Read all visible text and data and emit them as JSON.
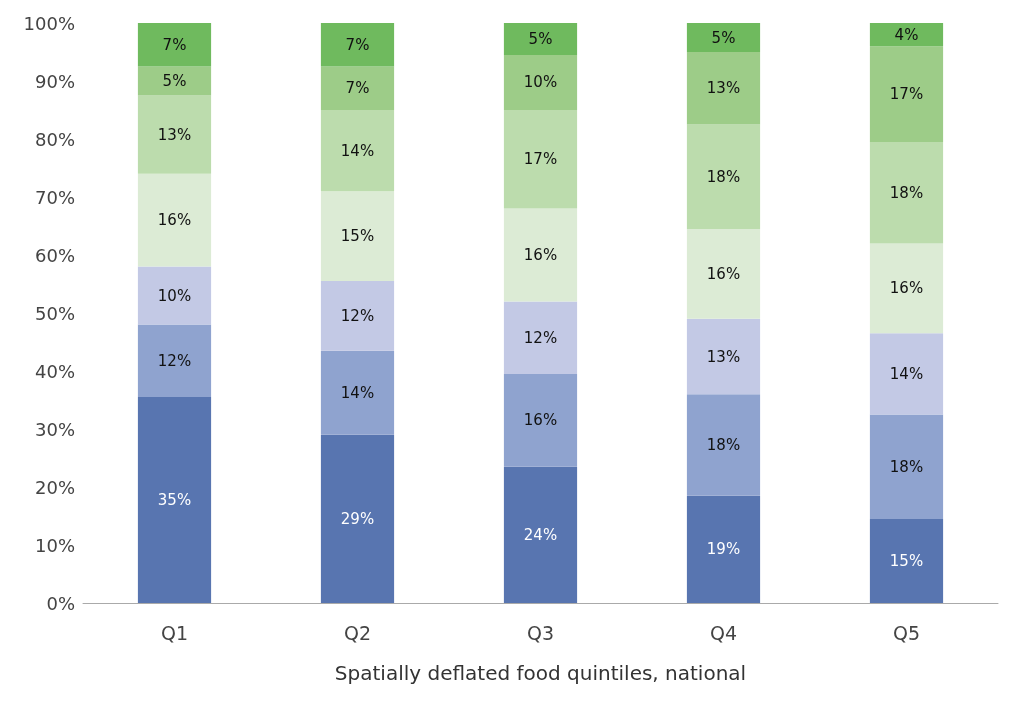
{
  "chart_data": {
    "type": "bar",
    "stacked": true,
    "xlabel": "Spatially deflated food quintiles, national",
    "categories": [
      "Q1",
      "Q2",
      "Q3",
      "Q4",
      "Q5"
    ],
    "series": [
      {
        "color": "#5875b0",
        "values": [
          35.5,
          29,
          23.5,
          18.5,
          14.5
        ],
        "value_labels": [
          "35%",
          "29%",
          "24%",
          "19%",
          "15%"
        ]
      },
      {
        "color": "#8fa3cf",
        "values": [
          12.5,
          14.5,
          16,
          17.5,
          18
        ],
        "value_labels": [
          "12%",
          "14%",
          "16%",
          "18%",
          "18%"
        ]
      },
      {
        "color": "#c3c9e5",
        "values": [
          10,
          12,
          12.5,
          13,
          14
        ],
        "value_labels": [
          "10%",
          "12%",
          "12%",
          "13%",
          "14%"
        ]
      },
      {
        "color": "#dcebd5",
        "values": [
          16,
          15.5,
          16,
          15.5,
          15.5
        ],
        "value_labels": [
          "16%",
          "15%",
          "16%",
          "16%",
          "16%"
        ]
      },
      {
        "color": "#bcdcad",
        "values": [
          13.5,
          14,
          17,
          18,
          17.5
        ],
        "value_labels": [
          "13%",
          "14%",
          "17%",
          "18%",
          "18%"
        ]
      },
      {
        "color": "#9dcc88",
        "values": [
          5,
          7.5,
          9.5,
          12.5,
          16.5
        ],
        "value_labels": [
          "5%",
          "7%",
          "10%",
          "13%",
          "17%"
        ]
      },
      {
        "color": "#6fba5e",
        "values": [
          7.5,
          7.5,
          5.5,
          5,
          4
        ],
        "value_labels": [
          "7%",
          "7%",
          "5%",
          "5%",
          "4%"
        ]
      }
    ],
    "ylim": [
      0,
      100
    ],
    "yticks": [
      {
        "value": 0,
        "label": "0%"
      },
      {
        "value": 10,
        "label": "10%"
      },
      {
        "value": 20,
        "label": "20%"
      },
      {
        "value": 30,
        "label": "30%"
      },
      {
        "value": 40,
        "label": "40%"
      },
      {
        "value": 50,
        "label": "50%"
      },
      {
        "value": 60,
        "label": "60%"
      },
      {
        "value": 70,
        "label": "70%"
      },
      {
        "value": 80,
        "label": "80%"
      },
      {
        "value": 90,
        "label": "90%"
      },
      {
        "value": 100,
        "label": "100%"
      }
    ],
    "grid": false
  }
}
